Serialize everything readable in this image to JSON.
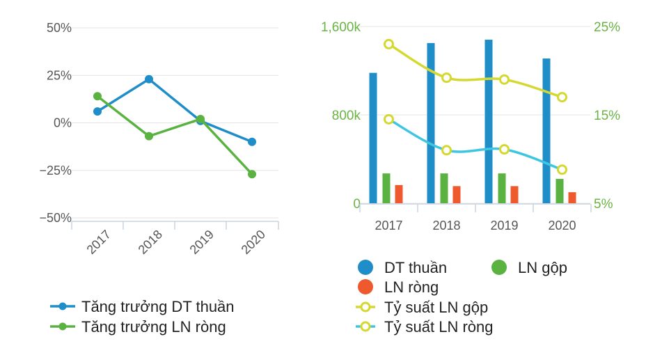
{
  "chart_data": [
    {
      "type": "line",
      "title": "",
      "categories": [
        "2017",
        "2018",
        "2019",
        "2020"
      ],
      "y_ticks": [
        "50%",
        "25%",
        "0%",
        "−25%",
        "−50%"
      ],
      "ylim": [
        -50,
        50
      ],
      "series": [
        {
          "name": "Tăng trưởng DT thuần",
          "color": "#1f8dc8",
          "values": [
            6,
            23,
            1,
            -10
          ]
        },
        {
          "name": "Tăng trưởng LN ròng",
          "color": "#5ab240",
          "values": [
            14,
            -7,
            2,
            -27
          ]
        }
      ],
      "legend": [
        "Tăng trưởng DT thuần",
        "Tăng trưởng LN ròng"
      ]
    },
    {
      "type": "bar",
      "title": "",
      "categories": [
        "2017",
        "2018",
        "2019",
        "2020"
      ],
      "y_left_ticks": [
        "1,600k",
        "800k",
        "0"
      ],
      "y_left_range": [
        0,
        1600
      ],
      "y_right_ticks": [
        "25%",
        "15%",
        "5%"
      ],
      "y_right_range": [
        5,
        25
      ],
      "bar_series": [
        {
          "name": "DT thuần",
          "color": "#1f8dc8",
          "values": [
            1180,
            1450,
            1480,
            1310
          ]
        },
        {
          "name": "LN gộp",
          "color": "#5ab240",
          "values": [
            270,
            270,
            270,
            220
          ]
        },
        {
          "name": "LN ròng",
          "color": "#ee5a2e",
          "values": [
            165,
            155,
            155,
            100
          ]
        }
      ],
      "line_series": [
        {
          "name": "Tỷ suất LN gộp",
          "color": "#d6d832",
          "values": [
            23.0,
            19.2,
            19.0,
            17.0
          ]
        },
        {
          "name": "Tỷ suất LN ròng",
          "color": "#3ec6e0",
          "values": [
            14.5,
            11.0,
            11.1,
            8.8
          ]
        }
      ],
      "legend": [
        "DT thuần",
        "LN gộp",
        "LN ròng",
        "Tỷ suất LN gộp",
        "Tỷ suất LN ròng"
      ]
    }
  ]
}
